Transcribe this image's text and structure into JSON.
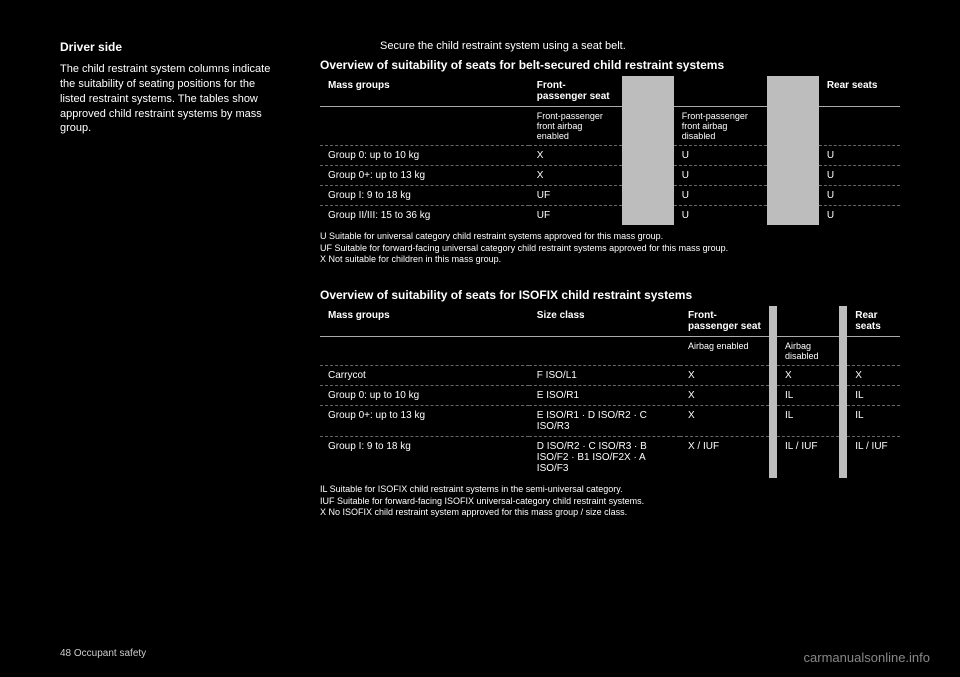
{
  "header": {
    "side_label": "Driver side",
    "instruction": "Secure the child restraint system using a seat belt."
  },
  "intro": "The child restraint system columns indicate the suitability of seating positions for the listed restraint systems. The tables show approved child restraint systems by mass group.",
  "table1": {
    "title": "Overview of suitability of seats for belt-secured child restraint systems",
    "col_headers": [
      "Mass groups",
      "Front-passenger seat",
      "",
      "Rear seats"
    ],
    "sub_headers": [
      "",
      "Front-passenger front airbag enabled",
      "",
      "Front-passenger front airbag disabled",
      "",
      ""
    ],
    "rows": [
      [
        "Group 0: up to 10 kg",
        "X",
        "",
        "U",
        "",
        "U"
      ],
      [
        "Group 0+: up to 13 kg",
        "X",
        "",
        "U",
        "",
        "U"
      ],
      [
        "Group I: 9 to 18 kg",
        "UF",
        "",
        "U",
        "",
        "U"
      ],
      [
        "Group II/III: 15 to 36 kg",
        "UF",
        "",
        "U",
        "",
        "U"
      ]
    ],
    "legend": [
      "U  Suitable for universal category child restraint systems approved for this mass group.",
      "UF Suitable for forward-facing universal category child restraint systems approved for this mass group.",
      "X  Not suitable for children in this mass group."
    ]
  },
  "table2": {
    "title": "Overview of suitability of seats for ISOFIX child restraint systems",
    "col_headers": [
      "Mass groups",
      "Size class",
      "Front-passenger seat",
      "",
      "Rear seats"
    ],
    "sub_headers": [
      "",
      "",
      "Airbag enabled",
      "",
      "Airbag disabled",
      "",
      ""
    ],
    "rows": [
      [
        "Carrycot",
        "F  ISO/L1",
        "X",
        "",
        "X",
        "",
        "X"
      ],
      [
        "Group 0: up to 10 kg",
        "E  ISO/R1",
        "X",
        "",
        "IL",
        "",
        "IL"
      ],
      [
        "Group 0+: up to 13 kg",
        "E  ISO/R1 · D  ISO/R2 · C  ISO/R3",
        "X",
        "",
        "IL",
        "",
        "IL"
      ],
      [
        "Group I: 9 to 18 kg",
        "D  ISO/R2 · C  ISO/R3 · B  ISO/F2 · B1 ISO/F2X · A  ISO/F3",
        "X / IUF",
        "",
        "IL / IUF",
        "",
        "IL / IUF"
      ]
    ],
    "legend": [
      "IL  Suitable for ISOFIX child restraint systems in the semi-universal category.",
      "IUF Suitable for forward-facing ISOFIX universal-category child restraint systems.",
      "X   No ISOFIX child restraint system approved for this mass group / size class."
    ]
  },
  "page_number": "48  Occupant safety",
  "watermark": "carmanualsonline.info",
  "colors": {
    "bg": "#000000",
    "text": "#ffffff",
    "gap": "#bdbdbd",
    "border": "#aaaaaa",
    "dash": "#666666",
    "wm": "#888888"
  }
}
